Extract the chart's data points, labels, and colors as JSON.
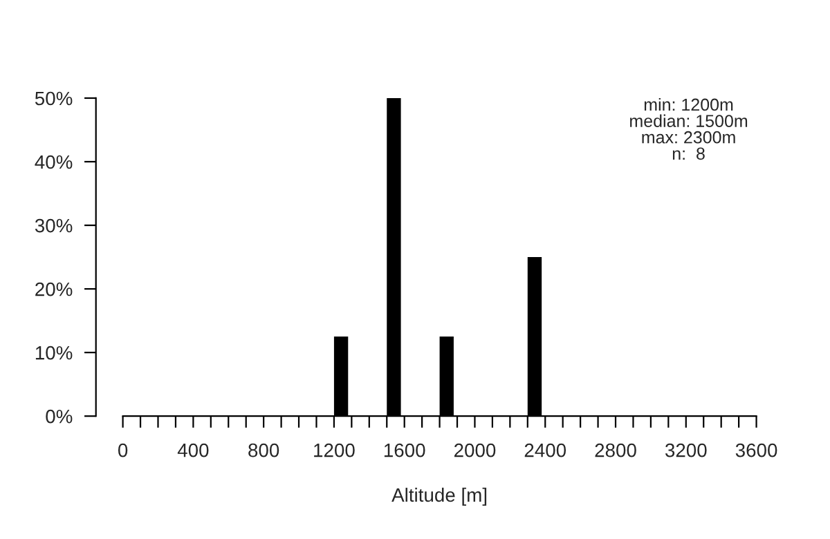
{
  "chart_data": {
    "type": "histogram",
    "xlabel": "Altitude [m]",
    "bins": [
      1200,
      1300,
      1400,
      1500,
      1600,
      1700,
      1800,
      1900,
      2000,
      2100,
      2200,
      2300,
      2400
    ],
    "values": [
      12.5,
      0,
      0,
      50,
      0,
      0,
      12.5,
      0,
      0,
      0,
      0,
      25
    ],
    "color": "#000000",
    "xlim": [
      0,
      3600
    ],
    "xticks": [
      0,
      {
        "value": 100,
        "label": null
      },
      {
        "value": 200,
        "label": null
      },
      {
        "value": 300,
        "label": null
      },
      400,
      {
        "value": 500,
        "label": null
      },
      {
        "value": 600,
        "label": null
      },
      {
        "value": 700,
        "label": null
      },
      800,
      {
        "value": 900,
        "label": null
      },
      {
        "value": 1000,
        "label": null
      },
      {
        "value": 1100,
        "label": null
      },
      1200,
      {
        "value": 1300,
        "label": null
      },
      {
        "value": 1400,
        "label": null
      },
      {
        "value": 1500,
        "label": null
      },
      1600,
      {
        "value": 1700,
        "label": null
      },
      {
        "value": 1800,
        "label": null
      },
      {
        "value": 1900,
        "label": null
      },
      2000,
      {
        "value": 2100,
        "label": null
      },
      {
        "value": 2200,
        "label": null
      },
      {
        "value": 2300,
        "label": null
      },
      2400,
      {
        "value": 2500,
        "label": null
      },
      {
        "value": 2600,
        "label": null
      },
      {
        "value": 2700,
        "label": null
      },
      2800,
      {
        "value": 2900,
        "label": null
      },
      {
        "value": 3000,
        "label": null
      },
      {
        "value": 3100,
        "label": null
      },
      3200,
      {
        "value": 3300,
        "label": null
      },
      {
        "value": 3400,
        "label": null
      },
      {
        "value": 3500,
        "label": null
      },
      3600
    ],
    "ylim": [
      0,
      50
    ],
    "yticks": [
      {
        "value": 0,
        "label": "0%"
      },
      {
        "value": 10,
        "label": "10%"
      },
      {
        "value": 20,
        "label": "20%"
      },
      {
        "value": 30,
        "label": "30%"
      },
      {
        "value": 40,
        "label": "40%"
      },
      {
        "value": 50,
        "label": "50%"
      }
    ],
    "annotations": [
      "min: 1200m",
      "median: 1500m",
      "max: 2300m",
      "n:  8"
    ],
    "grid": false
  }
}
